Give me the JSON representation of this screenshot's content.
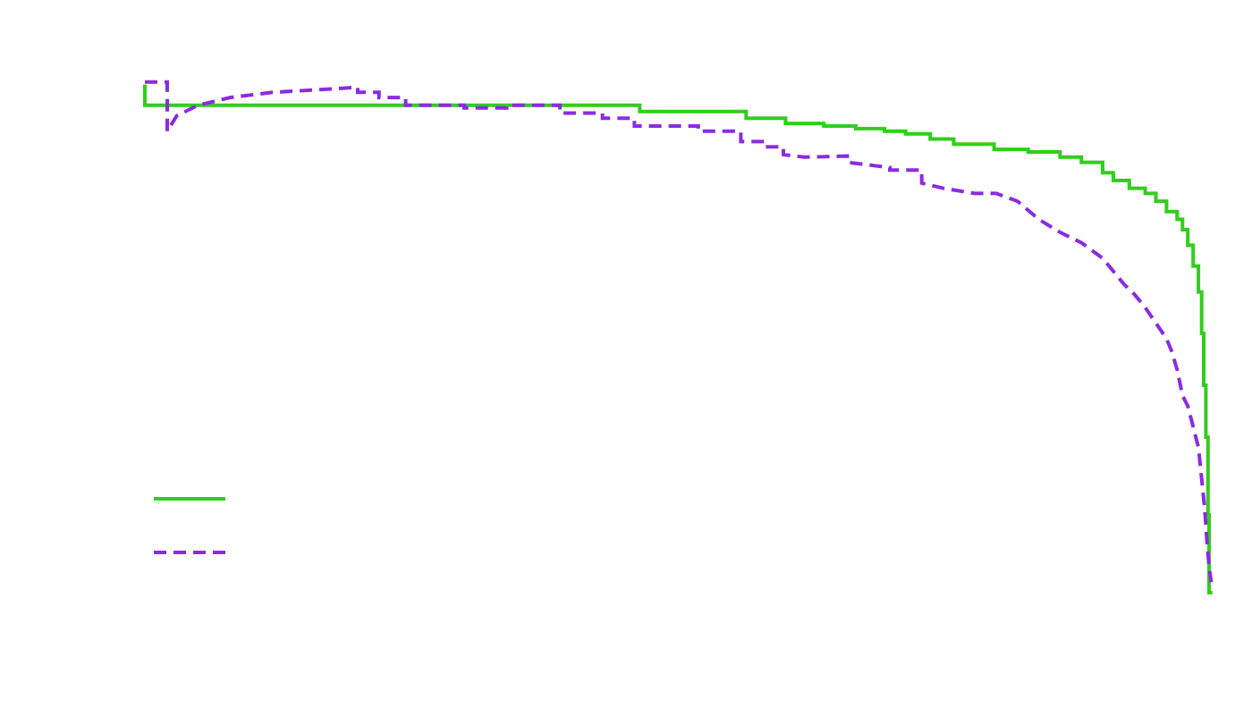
{
  "chart_data": {
    "type": "line",
    "title": "",
    "xlabel": "",
    "ylabel": "",
    "xlim": [
      0,
      1
    ],
    "ylim": [
      0,
      1
    ],
    "grid": false,
    "axes_visible": false,
    "legend_position": "bottom-left",
    "series": [
      {
        "color": "#33cc1f",
        "line_style": "solid",
        "step": true,
        "points": [
          [
            0.0,
            0.98
          ],
          [
            0.0,
            0.94
          ],
          [
            0.465,
            0.94
          ],
          [
            0.465,
            0.928
          ],
          [
            0.565,
            0.928
          ],
          [
            0.565,
            0.915
          ],
          [
            0.602,
            0.915
          ],
          [
            0.602,
            0.905
          ],
          [
            0.638,
            0.905
          ],
          [
            0.638,
            0.9
          ],
          [
            0.668,
            0.9
          ],
          [
            0.668,
            0.895
          ],
          [
            0.695,
            0.895
          ],
          [
            0.695,
            0.89
          ],
          [
            0.715,
            0.89
          ],
          [
            0.715,
            0.885
          ],
          [
            0.738,
            0.885
          ],
          [
            0.738,
            0.875
          ],
          [
            0.76,
            0.875
          ],
          [
            0.76,
            0.865
          ],
          [
            0.798,
            0.865
          ],
          [
            0.798,
            0.855
          ],
          [
            0.83,
            0.855
          ],
          [
            0.83,
            0.85
          ],
          [
            0.86,
            0.85
          ],
          [
            0.86,
            0.84
          ],
          [
            0.88,
            0.84
          ],
          [
            0.88,
            0.83
          ],
          [
            0.9,
            0.83
          ],
          [
            0.9,
            0.81
          ],
          [
            0.91,
            0.81
          ],
          [
            0.91,
            0.795
          ],
          [
            0.925,
            0.795
          ],
          [
            0.925,
            0.78
          ],
          [
            0.94,
            0.78
          ],
          [
            0.94,
            0.77
          ],
          [
            0.95,
            0.77
          ],
          [
            0.95,
            0.755
          ],
          [
            0.96,
            0.755
          ],
          [
            0.96,
            0.735
          ],
          [
            0.97,
            0.735
          ],
          [
            0.97,
            0.72
          ],
          [
            0.975,
            0.72
          ],
          [
            0.975,
            0.7
          ],
          [
            0.98,
            0.7
          ],
          [
            0.98,
            0.67
          ],
          [
            0.985,
            0.67
          ],
          [
            0.985,
            0.63
          ],
          [
            0.99,
            0.63
          ],
          [
            0.99,
            0.58
          ],
          [
            0.993,
            0.58
          ],
          [
            0.993,
            0.5
          ],
          [
            0.995,
            0.5
          ],
          [
            0.995,
            0.4
          ],
          [
            0.997,
            0.4
          ],
          [
            0.997,
            0.3
          ],
          [
            0.999,
            0.3
          ],
          [
            0.999,
            0.15
          ],
          [
            1.0,
            0.15
          ],
          [
            1.0,
            0.0
          ],
          [
            1.003,
            0.0
          ]
        ]
      },
      {
        "color": "#8a2be2",
        "line_style": "dashed",
        "step": false,
        "points": [
          [
            0.0,
            0.985
          ],
          [
            0.021,
            0.985
          ],
          [
            0.021,
            0.89
          ],
          [
            0.03,
            0.92
          ],
          [
            0.05,
            0.94
          ],
          [
            0.08,
            0.955
          ],
          [
            0.12,
            0.965
          ],
          [
            0.18,
            0.972
          ],
          [
            0.2,
            0.975
          ],
          [
            0.2,
            0.965
          ],
          [
            0.22,
            0.965
          ],
          [
            0.22,
            0.955
          ],
          [
            0.245,
            0.955
          ],
          [
            0.245,
            0.94
          ],
          [
            0.28,
            0.94
          ],
          [
            0.3,
            0.94
          ],
          [
            0.3,
            0.935
          ],
          [
            0.34,
            0.935
          ],
          [
            0.34,
            0.94
          ],
          [
            0.38,
            0.94
          ],
          [
            0.39,
            0.94
          ],
          [
            0.39,
            0.925
          ],
          [
            0.43,
            0.925
          ],
          [
            0.43,
            0.915
          ],
          [
            0.46,
            0.915
          ],
          [
            0.46,
            0.9
          ],
          [
            0.52,
            0.9
          ],
          [
            0.52,
            0.89
          ],
          [
            0.56,
            0.89
          ],
          [
            0.56,
            0.87
          ],
          [
            0.58,
            0.87
          ],
          [
            0.58,
            0.86
          ],
          [
            0.6,
            0.86
          ],
          [
            0.6,
            0.845
          ],
          [
            0.62,
            0.84
          ],
          [
            0.66,
            0.842
          ],
          [
            0.66,
            0.83
          ],
          [
            0.7,
            0.82
          ],
          [
            0.7,
            0.815
          ],
          [
            0.73,
            0.815
          ],
          [
            0.73,
            0.79
          ],
          [
            0.75,
            0.78
          ],
          [
            0.78,
            0.77
          ],
          [
            0.8,
            0.77
          ],
          [
            0.82,
            0.755
          ],
          [
            0.84,
            0.72
          ],
          [
            0.86,
            0.695
          ],
          [
            0.88,
            0.675
          ],
          [
            0.9,
            0.645
          ],
          [
            0.91,
            0.62
          ],
          [
            0.92,
            0.595
          ],
          [
            0.93,
            0.575
          ],
          [
            0.94,
            0.55
          ],
          [
            0.95,
            0.52
          ],
          [
            0.96,
            0.49
          ],
          [
            0.965,
            0.465
          ],
          [
            0.97,
            0.43
          ],
          [
            0.975,
            0.38
          ],
          [
            0.98,
            0.36
          ],
          [
            0.985,
            0.32
          ],
          [
            0.99,
            0.28
          ],
          [
            0.993,
            0.22
          ],
          [
            0.996,
            0.16
          ],
          [
            0.998,
            0.1
          ],
          [
            1.0,
            0.05
          ],
          [
            1.002,
            0.02
          ]
        ]
      }
    ]
  }
}
